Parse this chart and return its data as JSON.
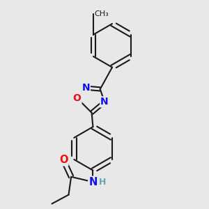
{
  "background_color": "#e8e8e8",
  "bond_color": "#1a1a1a",
  "bond_width": 1.5,
  "atom_colors": {
    "N": "#1010ee",
    "O": "#ee1010",
    "H": "#5fa8a8",
    "C": "#1a1a1a"
  },
  "font_size": 10.5
}
